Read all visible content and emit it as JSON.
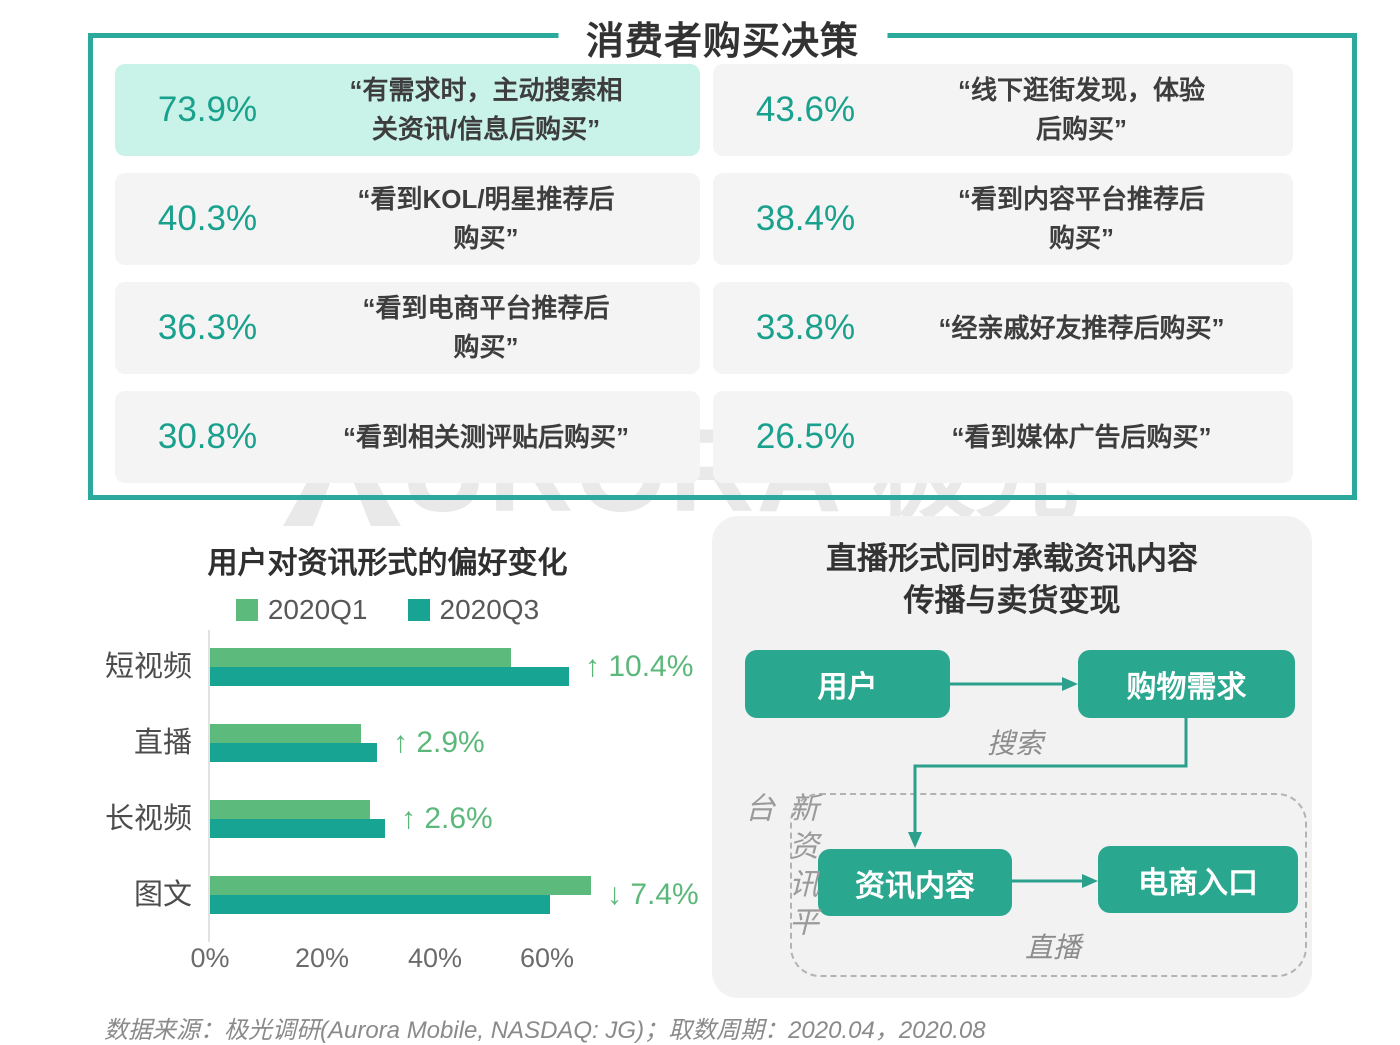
{
  "colors": {
    "accent_teal": "#2aa99c",
    "percent_teal": "#19a18d",
    "highlight_mint": "#c9f2e8",
    "card_gray": "#f4f4f5",
    "flow_node_teal": "#2aa78f",
    "annotation_green": "#5cb87a",
    "q1_green": "#5cba7d",
    "q3_teal": "#18a492"
  },
  "watermark": {
    "brand": "URORA",
    "brand_suffix": "极光"
  },
  "decision_panel": {
    "title": "消费者购买决策",
    "cards": [
      {
        "value": "73.9%",
        "quote": "“有需求时，主动搜索相\n关资讯/信息后购买”",
        "highlight": true
      },
      {
        "value": "43.6%",
        "quote": "“线下逛街发现，体验\n后购买”",
        "highlight": false
      },
      {
        "value": "40.3%",
        "quote": "“看到KOL/明星推荐后\n购买”",
        "highlight": false
      },
      {
        "value": "38.4%",
        "quote": "“看到内容平台推荐后\n购买”",
        "highlight": false
      },
      {
        "value": "36.3%",
        "quote": "“看到电商平台推荐后\n购买”",
        "highlight": false
      },
      {
        "value": "33.8%",
        "quote": "“经亲戚好友推荐后购买”",
        "highlight": false
      },
      {
        "value": "30.8%",
        "quote": "“看到相关测评贴后购买”",
        "highlight": false
      },
      {
        "value": "26.5%",
        "quote": "“看到媒体广告后购买”",
        "highlight": false
      }
    ]
  },
  "chart_data": {
    "type": "bar",
    "orientation": "horizontal",
    "title": "用户对资讯形式的偏好变化",
    "categories": [
      "短视频",
      "直播",
      "长视频",
      "图文"
    ],
    "series": [
      {
        "name": "2020Q1",
        "color": "#5cba7d",
        "values": [
          53.5,
          26.8,
          28.5,
          67.8
        ]
      },
      {
        "name": "2020Q3",
        "color": "#18a492",
        "values": [
          63.9,
          29.7,
          31.1,
          60.4
        ]
      }
    ],
    "annotations": [
      "↑ 10.4%",
      "↑ 2.9%",
      "↑ 2.6%",
      "↓ 7.4%"
    ],
    "x_ticks": [
      "0%",
      "20%",
      "40%",
      "60%"
    ],
    "x_tick_values": [
      0,
      20,
      40,
      60
    ],
    "xlim": [
      0,
      70
    ],
    "grid": false,
    "legend_position": "top"
  },
  "flow_panel": {
    "title_line1": "直播形式同时承载资讯内容",
    "title_line2": "传播与卖货变现",
    "nodes": {
      "user": "用户",
      "need": "购物需求",
      "content": "资讯内容",
      "ecommerce": "电商入口"
    },
    "labels": {
      "search": "搜索",
      "live": "直播",
      "platform": "新资讯平台"
    }
  },
  "footer": {
    "source_text": "数据来源：极光调研(Aurora Mobile, NASDAQ: JG)；取数周期：2020.04，2020.08"
  }
}
